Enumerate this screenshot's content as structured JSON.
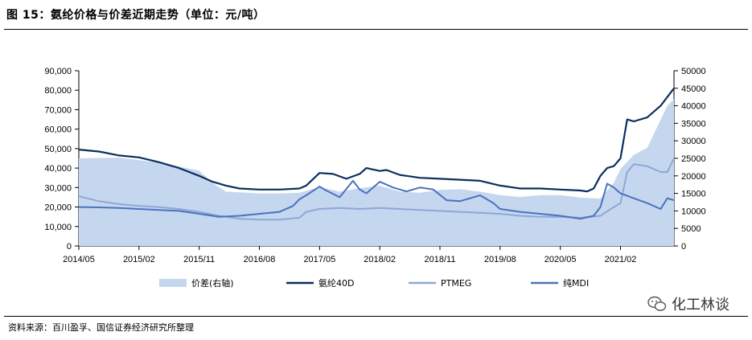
{
  "header": {
    "title": "图 15：氨纶价格与价差近期走势（单位：元/吨）"
  },
  "footer": {
    "source": "资料来源：百川盈孚、国信证券经济研究所整理",
    "brand": "化工林谈"
  },
  "colors": {
    "spread": "#c5d7ef",
    "spandex": "#0b2f5e",
    "ptmeg": "#8fa7d6",
    "mdi": "#4a72bf"
  },
  "chart_data": {
    "type": "line",
    "x_ticks": [
      "2014/05",
      "2015/02",
      "2015/11",
      "2016/08",
      "2017/05",
      "2018/02",
      "2018/11",
      "2019/08",
      "2020/05",
      "2021/02"
    ],
    "x_range": [
      "2014/05",
      "2021/10"
    ],
    "y_left": {
      "ticks": [
        "0",
        "10,000",
        "20,000",
        "30,000",
        "40,000",
        "50,000",
        "60,000",
        "70,000",
        "80,000",
        "90,000"
      ],
      "range": [
        0,
        90000
      ]
    },
    "y_right": {
      "ticks": [
        "0",
        "5000",
        "10000",
        "15000",
        "20000",
        "25000",
        "30000",
        "35000",
        "40000",
        "45000",
        "50000"
      ],
      "range": [
        0,
        50000
      ]
    },
    "legend_position": "bottom",
    "series": [
      {
        "name": "价差(右轴)",
        "type": "area",
        "axis": "right",
        "points": [
          [
            "2014/05",
            25000
          ],
          [
            "2014/11",
            25200
          ],
          [
            "2015/02",
            24500
          ],
          [
            "2015/05",
            23800
          ],
          [
            "2015/11",
            21500
          ],
          [
            "2016/01",
            18000
          ],
          [
            "2016/03",
            15500
          ],
          [
            "2016/08",
            15000
          ],
          [
            "2016/11",
            15000
          ],
          [
            "2017/02",
            15200
          ],
          [
            "2017/05",
            16800
          ],
          [
            "2017/08",
            15500
          ],
          [
            "2017/11",
            16500
          ],
          [
            "2018/02",
            17200
          ],
          [
            "2018/05",
            15500
          ],
          [
            "2018/08",
            15200
          ],
          [
            "2018/11",
            16000
          ],
          [
            "2019/02",
            16200
          ],
          [
            "2019/05",
            15500
          ],
          [
            "2019/08",
            14500
          ],
          [
            "2019/11",
            14000
          ],
          [
            "2020/02",
            14500
          ],
          [
            "2020/05",
            14500
          ],
          [
            "2020/08",
            13800
          ],
          [
            "2020/11",
            13500
          ],
          [
            "2021/01",
            18000
          ],
          [
            "2021/02",
            22000
          ],
          [
            "2021/04",
            26000
          ],
          [
            "2021/06",
            28000
          ],
          [
            "2021/08",
            36000
          ],
          [
            "2021/09",
            40000
          ],
          [
            "2021/10",
            42000
          ]
        ]
      },
      {
        "name": "氨纶40D",
        "type": "line",
        "axis": "left",
        "points": [
          [
            "2014/05",
            49500
          ],
          [
            "2014/08",
            48500
          ],
          [
            "2014/11",
            46500
          ],
          [
            "2015/02",
            45500
          ],
          [
            "2015/05",
            43000
          ],
          [
            "2015/08",
            40000
          ],
          [
            "2015/11",
            36000
          ],
          [
            "2016/01",
            33000
          ],
          [
            "2016/03",
            31000
          ],
          [
            "2016/05",
            29500
          ],
          [
            "2016/08",
            29000
          ],
          [
            "2016/11",
            29000
          ],
          [
            "2017/02",
            29500
          ],
          [
            "2017/03",
            31000
          ],
          [
            "2017/05",
            37500
          ],
          [
            "2017/07",
            37000
          ],
          [
            "2017/09",
            34500
          ],
          [
            "2017/11",
            37000
          ],
          [
            "2017/12",
            40000
          ],
          [
            "2018/02",
            38500
          ],
          [
            "2018/03",
            39000
          ],
          [
            "2018/05",
            36500
          ],
          [
            "2018/08",
            35000
          ],
          [
            "2018/11",
            34500
          ],
          [
            "2019/02",
            34000
          ],
          [
            "2019/05",
            33500
          ],
          [
            "2019/08",
            31000
          ],
          [
            "2019/11",
            29500
          ],
          [
            "2020/02",
            29500
          ],
          [
            "2020/05",
            29000
          ],
          [
            "2020/08",
            28500
          ],
          [
            "2020/09",
            28000
          ],
          [
            "2020/10",
            29500
          ],
          [
            "2020/11",
            36000
          ],
          [
            "2020/12",
            40000
          ],
          [
            "2021/01",
            41000
          ],
          [
            "2021/02",
            45000
          ],
          [
            "2021/03",
            65000
          ],
          [
            "2021/04",
            64000
          ],
          [
            "2021/06",
            66000
          ],
          [
            "2021/08",
            72000
          ],
          [
            "2021/10",
            81000
          ]
        ]
      },
      {
        "name": "PTMEG",
        "type": "line",
        "axis": "left",
        "points": [
          [
            "2014/05",
            25500
          ],
          [
            "2014/08",
            23000
          ],
          [
            "2014/11",
            21500
          ],
          [
            "2015/02",
            20500
          ],
          [
            "2015/05",
            20000
          ],
          [
            "2015/08",
            19000
          ],
          [
            "2015/11",
            17500
          ],
          [
            "2016/02",
            15500
          ],
          [
            "2016/05",
            14000
          ],
          [
            "2016/08",
            13500
          ],
          [
            "2016/11",
            13500
          ],
          [
            "2017/02",
            14500
          ],
          [
            "2017/03",
            17500
          ],
          [
            "2017/05",
            19000
          ],
          [
            "2017/08",
            19500
          ],
          [
            "2017/11",
            19000
          ],
          [
            "2018/02",
            19500
          ],
          [
            "2018/05",
            19000
          ],
          [
            "2018/08",
            18500
          ],
          [
            "2018/11",
            18000
          ],
          [
            "2019/02",
            17500
          ],
          [
            "2019/05",
            17000
          ],
          [
            "2019/08",
            16500
          ],
          [
            "2019/11",
            15500
          ],
          [
            "2020/02",
            15000
          ],
          [
            "2020/05",
            15000
          ],
          [
            "2020/08",
            14500
          ],
          [
            "2020/11",
            15500
          ],
          [
            "2021/01",
            20000
          ],
          [
            "2021/02",
            22000
          ],
          [
            "2021/03",
            38000
          ],
          [
            "2021/04",
            42000
          ],
          [
            "2021/06",
            41000
          ],
          [
            "2021/08",
            38000
          ],
          [
            "2021/09",
            38000
          ],
          [
            "2021/10",
            45000
          ]
        ]
      },
      {
        "name": "纯MDI",
        "type": "line",
        "axis": "left",
        "points": [
          [
            "2014/05",
            20000
          ],
          [
            "2014/08",
            19800
          ],
          [
            "2014/11",
            19500
          ],
          [
            "2015/02",
            19000
          ],
          [
            "2015/05",
            18500
          ],
          [
            "2015/08",
            18000
          ],
          [
            "2015/11",
            16500
          ],
          [
            "2016/02",
            15000
          ],
          [
            "2016/05",
            15500
          ],
          [
            "2016/08",
            16500
          ],
          [
            "2016/11",
            17500
          ],
          [
            "2017/01",
            20500
          ],
          [
            "2017/02",
            24000
          ],
          [
            "2017/03",
            26000
          ],
          [
            "2017/05",
            30500
          ],
          [
            "2017/06",
            28500
          ],
          [
            "2017/08",
            25000
          ],
          [
            "2017/10",
            33500
          ],
          [
            "2017/11",
            29000
          ],
          [
            "2017/12",
            27000
          ],
          [
            "2018/02",
            33000
          ],
          [
            "2018/04",
            30000
          ],
          [
            "2018/06",
            28000
          ],
          [
            "2018/08",
            30000
          ],
          [
            "2018/10",
            29000
          ],
          [
            "2018/12",
            23500
          ],
          [
            "2019/02",
            23000
          ],
          [
            "2019/04",
            25000
          ],
          [
            "2019/05",
            26000
          ],
          [
            "2019/07",
            22000
          ],
          [
            "2019/08",
            19000
          ],
          [
            "2019/11",
            17500
          ],
          [
            "2020/02",
            16500
          ],
          [
            "2020/05",
            15500
          ],
          [
            "2020/08",
            14000
          ],
          [
            "2020/10",
            15500
          ],
          [
            "2020/11",
            20000
          ],
          [
            "2020/12",
            32000
          ],
          [
            "2021/01",
            30000
          ],
          [
            "2021/02",
            27000
          ],
          [
            "2021/04",
            24500
          ],
          [
            "2021/06",
            22000
          ],
          [
            "2021/08",
            19000
          ],
          [
            "2021/09",
            24500
          ],
          [
            "2021/10",
            23500
          ]
        ]
      }
    ]
  }
}
